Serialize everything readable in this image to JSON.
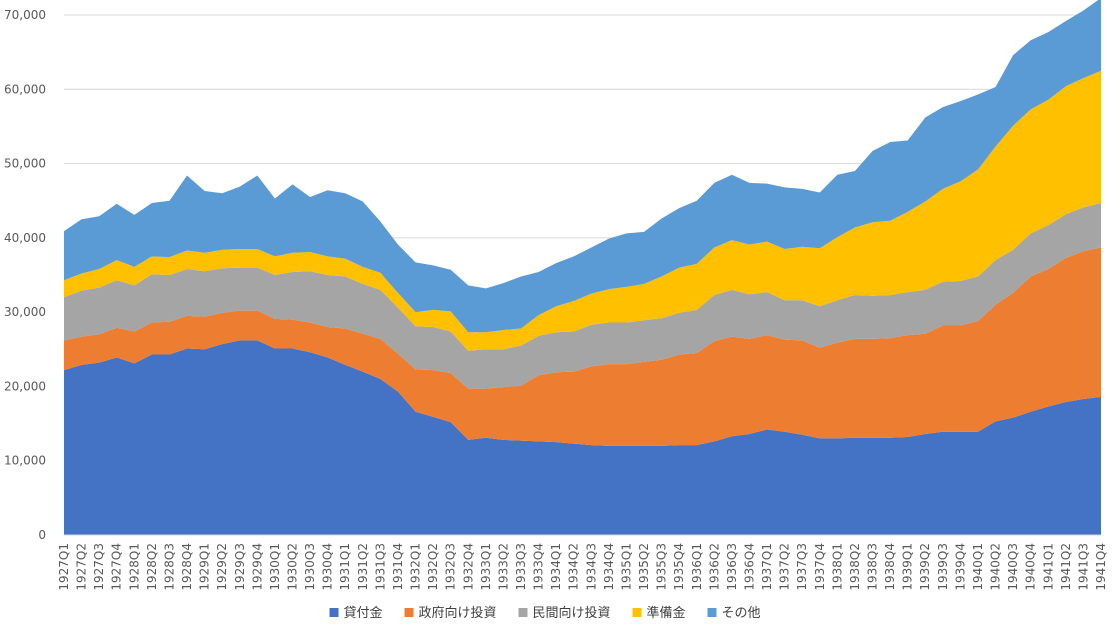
{
  "chart_data": {
    "type": "area",
    "stacked": true,
    "title": "",
    "xlabel": "",
    "ylabel": "",
    "ylim": [
      0,
      70000
    ],
    "yticks": [
      0,
      10000,
      20000,
      30000,
      40000,
      50000,
      60000,
      70000
    ],
    "ytick_labels": [
      "0",
      "10,000",
      "20,000",
      "30,000",
      "40,000",
      "50,000",
      "60,000",
      "70,000"
    ],
    "grid": "horizontal",
    "legend_position": "bottom",
    "categories": [
      "1927Q1",
      "1927Q2",
      "1927Q3",
      "1927Q4",
      "1928Q1",
      "1928Q2",
      "1928Q3",
      "1928Q4",
      "1929Q1",
      "1929Q2",
      "1929Q3",
      "1929Q4",
      "1930Q1",
      "1930Q2",
      "1930Q3",
      "1930Q4",
      "1931Q1",
      "1931Q2",
      "1931Q3",
      "1931Q4",
      "1932Q1",
      "1932Q2",
      "1932Q3",
      "1932Q4",
      "1933Q1",
      "1933Q2",
      "1933Q3",
      "1933Q4",
      "1934Q1",
      "1934Q2",
      "1934Q3",
      "1934Q4",
      "1935Q1",
      "1935Q2",
      "1935Q3",
      "1935Q4",
      "1936Q1",
      "1936Q2",
      "1936Q3",
      "1936Q4",
      "1937Q1",
      "1937Q2",
      "1937Q3",
      "1937Q4",
      "1938Q1",
      "1938Q2",
      "1938Q3",
      "1938Q4",
      "1939Q1",
      "1939Q2",
      "1939Q3",
      "1939Q4",
      "1940Q1",
      "1940Q2",
      "1940Q3",
      "1940Q4",
      "1941Q1",
      "1941Q2",
      "1941Q3",
      "1941Q4"
    ],
    "series": [
      {
        "name": "貸付金",
        "color": "#4472C4",
        "values": [
          22200,
          22900,
          23200,
          23900,
          23100,
          24300,
          24300,
          25100,
          25000,
          25700,
          26200,
          26200,
          25100,
          25100,
          24600,
          23900,
          22900,
          22000,
          21000,
          19300,
          16600,
          15900,
          15200,
          12800,
          13100,
          12800,
          12700,
          12600,
          12500,
          12300,
          12100,
          12000,
          12000,
          12000,
          12000,
          12100,
          12100,
          12600,
          13300,
          13600,
          14200,
          13900,
          13500,
          13000,
          13000,
          13100,
          13100,
          13100,
          13200,
          13600,
          13900,
          13900,
          13900,
          15300,
          15800,
          16600,
          17300,
          17900,
          18300,
          18600
        ]
      },
      {
        "name": "政府向け投資",
        "color": "#ED7D31",
        "values": [
          4000,
          3800,
          3800,
          4000,
          4300,
          4300,
          4400,
          4400,
          4400,
          4200,
          4000,
          4000,
          4000,
          3900,
          4000,
          4100,
          4900,
          5100,
          5400,
          5100,
          5700,
          6300,
          6600,
          6900,
          6600,
          7100,
          7400,
          8900,
          9400,
          9700,
          10600,
          11000,
          11000,
          11300,
          11600,
          12200,
          12400,
          13500,
          13400,
          12800,
          12700,
          12400,
          12700,
          12200,
          12900,
          13300,
          13300,
          13400,
          13700,
          13500,
          14300,
          14300,
          14900,
          15700,
          16800,
          18200,
          18500,
          19400,
          19900,
          20100
        ]
      },
      {
        "name": "民間向け投資",
        "color": "#A5A5A5",
        "values": [
          5800,
          6200,
          6300,
          6400,
          6200,
          6500,
          6300,
          6300,
          6100,
          6000,
          5800,
          5800,
          5900,
          6400,
          6900,
          7000,
          7000,
          6700,
          6600,
          6200,
          5800,
          5800,
          5600,
          5100,
          5300,
          5100,
          5400,
          5300,
          5400,
          5400,
          5600,
          5600,
          5600,
          5600,
          5600,
          5600,
          5800,
          6200,
          6300,
          6000,
          5800,
          5300,
          5400,
          5600,
          5700,
          5900,
          5800,
          5800,
          5800,
          5900,
          5900,
          6000,
          6000,
          6000,
          5800,
          5800,
          5900,
          5900,
          5900,
          6000
        ]
      },
      {
        "name": "準備金",
        "color": "#FFC000",
        "values": [
          2300,
          2300,
          2500,
          2700,
          2500,
          2400,
          2400,
          2500,
          2500,
          2500,
          2500,
          2500,
          2500,
          2600,
          2600,
          2500,
          2400,
          2300,
          2300,
          2000,
          1900,
          2300,
          2700,
          2500,
          2300,
          2600,
          2300,
          2800,
          3500,
          4100,
          4200,
          4500,
          4800,
          4900,
          5600,
          6100,
          6200,
          6400,
          6700,
          6700,
          6800,
          6900,
          7200,
          7800,
          8500,
          9100,
          9900,
          10000,
          10800,
          11900,
          12500,
          13400,
          14400,
          15300,
          16700,
          16700,
          16900,
          17200,
          17400,
          17800
        ]
      },
      {
        "name": "その他",
        "color": "#5B9BD5",
        "values": [
          6600,
          7300,
          7100,
          7600,
          7000,
          7200,
          7600,
          10100,
          8300,
          7600,
          8400,
          9900,
          7800,
          9200,
          7400,
          8900,
          8800,
          8800,
          6900,
          6500,
          6700,
          6000,
          5600,
          6300,
          5900,
          6300,
          7000,
          5800,
          5800,
          6000,
          6200,
          6800,
          7200,
          7000,
          7800,
          8000,
          8500,
          8700,
          8800,
          8300,
          7800,
          8300,
          7800,
          7500,
          8400,
          7600,
          9600,
          10600,
          9600,
          11300,
          11000,
          10800,
          10100,
          8000,
          9500,
          9300,
          9100,
          8800,
          9100,
          9800
        ]
      }
    ]
  }
}
